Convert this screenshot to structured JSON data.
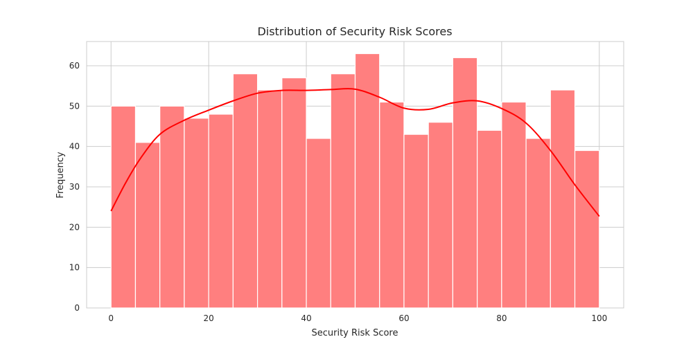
{
  "chart_data": {
    "type": "bar",
    "subtype": "histogram-with-kde",
    "title": "Distribution of Security Risk Scores",
    "xlabel": "Security Risk Score",
    "ylabel": "Frequency",
    "xlim": [
      -5,
      105
    ],
    "ylim": [
      0,
      66
    ],
    "xticks": [
      0,
      20,
      40,
      60,
      80,
      100
    ],
    "yticks": [
      0,
      10,
      20,
      30,
      40,
      50,
      60
    ],
    "grid": true,
    "bin_edges": [
      0,
      5,
      10,
      15,
      20,
      25,
      30,
      35,
      40,
      45,
      50,
      55,
      60,
      65,
      70,
      75,
      80,
      85,
      90,
      95,
      100
    ],
    "values": [
      50,
      41,
      50,
      47,
      48,
      58,
      54,
      57,
      42,
      58,
      63,
      51,
      43,
      46,
      62,
      44,
      51,
      42,
      54,
      39
    ],
    "kde": {
      "x": [
        0,
        3,
        6,
        10,
        15,
        20,
        25,
        30,
        35,
        40,
        45,
        50,
        55,
        60,
        65,
        70,
        75,
        80,
        85,
        90,
        95,
        100
      ],
      "y": [
        24,
        31,
        37,
        43,
        46.5,
        49,
        51.3,
        53.2,
        53.9,
        53.9,
        54.1,
        54.2,
        52.2,
        49.5,
        49.2,
        50.8,
        51.3,
        49.4,
        45.8,
        39,
        30.5,
        22.7
      ]
    },
    "colors": {
      "bar": "#ff7f7f",
      "kde": "#ff0000"
    }
  }
}
